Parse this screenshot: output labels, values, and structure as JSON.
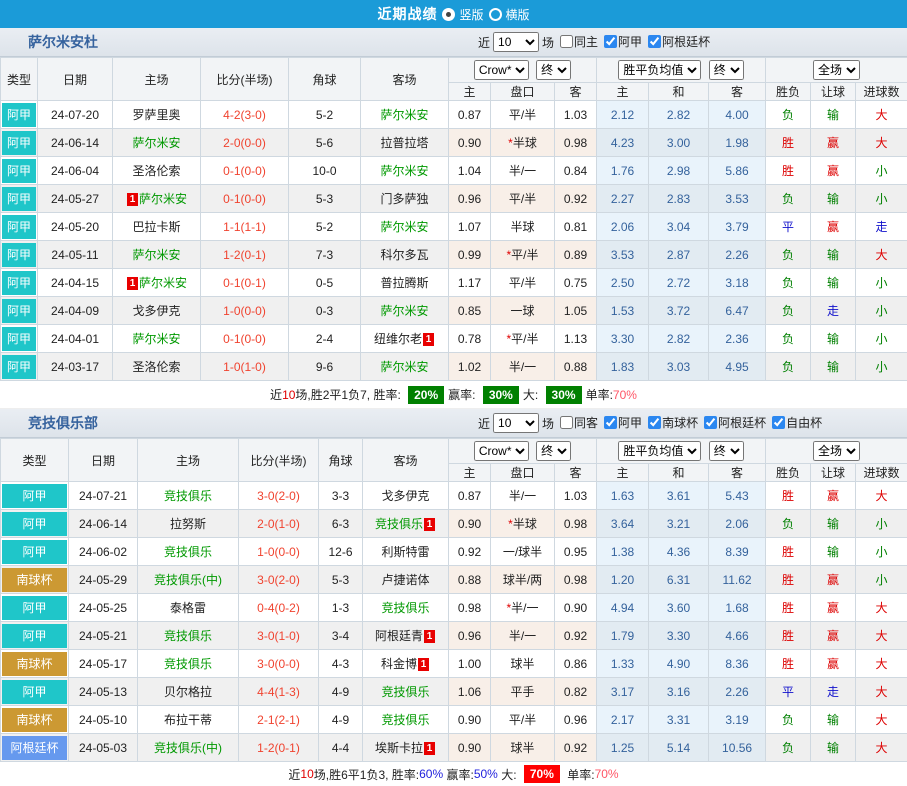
{
  "titlebar": {
    "title": "近期战绩",
    "radio_vertical": "竖版",
    "radio_horizontal": "横版",
    "selected": "竖版"
  },
  "header": {
    "columns": [
      "类型",
      "日期",
      "主场",
      "比分(半场)",
      "角球",
      "客场"
    ],
    "sub": [
      "主",
      "盘口",
      "客",
      "主",
      "和",
      "客",
      "胜负",
      "让球",
      "进球数"
    ],
    "selects": {
      "bookmaker": "Crow*",
      "time_final": "终",
      "avg": "胜平负均值",
      "scope": "全场"
    }
  },
  "card_label": "1",
  "colors": {
    "titlebar_bg": "#1b9bd8",
    "focus_team": "#009900",
    "score": "#f0432f",
    "league": {
      "阿甲": "#1fc6c9",
      "南球杯": "#cc9933",
      "阿根廷杯": "#6699ee"
    },
    "outcome": {
      "胜": "#dd0000",
      "赢": "#dd0000",
      "大": "#dd0000",
      "负": "#008000",
      "输": "#008000",
      "小": "#008000",
      "平": "#1111cc",
      "走": "#1111cc"
    }
  },
  "sections": [
    {
      "team": "萨尔米安杜",
      "filters": {
        "prefix": "近",
        "count": "10",
        "suffix": "场",
        "checkboxes": [
          {
            "label": "同主",
            "checked": false
          },
          {
            "label": "阿甲",
            "checked": true
          },
          {
            "label": "阿根廷杯",
            "checked": true
          }
        ]
      },
      "rows": [
        {
          "league": "阿甲",
          "date": "24-07-20",
          "home": "罗萨里奥",
          "home_focus": false,
          "home_card": false,
          "score": "4-2",
          "half": "(3-0)",
          "corner": "5-2",
          "away": "萨尔米安",
          "away_focus": true,
          "away_card": false,
          "h_odds": "0.87",
          "handicap": "平/半",
          "a_odds": "1.03",
          "avg": [
            "2.12",
            "2.82",
            "4.00"
          ],
          "result": "负",
          "let_ball": "输",
          "goals": "大"
        },
        {
          "league": "阿甲",
          "date": "24-06-14",
          "home": "萨尔米安",
          "home_focus": true,
          "home_card": false,
          "score": "2-0",
          "half": "(0-0)",
          "corner": "5-6",
          "away": "拉普拉塔",
          "away_focus": false,
          "away_card": false,
          "h_odds": "0.90",
          "handicap": "*半球",
          "a_odds": "0.98",
          "avg": [
            "4.23",
            "3.00",
            "1.98"
          ],
          "result": "胜",
          "let_ball": "赢",
          "goals": "大"
        },
        {
          "league": "阿甲",
          "date": "24-06-04",
          "home": "圣洛伦索",
          "home_focus": false,
          "home_card": false,
          "score": "0-1",
          "half": "(0-0)",
          "corner": "10-0",
          "away": "萨尔米安",
          "away_focus": true,
          "away_card": false,
          "h_odds": "1.04",
          "handicap": "半/一",
          "a_odds": "0.84",
          "avg": [
            "1.76",
            "2.98",
            "5.86"
          ],
          "result": "胜",
          "let_ball": "赢",
          "goals": "小"
        },
        {
          "league": "阿甲",
          "date": "24-05-27",
          "home": "萨尔米安",
          "home_focus": true,
          "home_card": true,
          "score": "0-1",
          "half": "(0-0)",
          "corner": "5-3",
          "away": "门多萨独",
          "away_focus": false,
          "away_card": false,
          "h_odds": "0.96",
          "handicap": "平/半",
          "a_odds": "0.92",
          "avg": [
            "2.27",
            "2.83",
            "3.53"
          ],
          "result": "负",
          "let_ball": "输",
          "goals": "小"
        },
        {
          "league": "阿甲",
          "date": "24-05-20",
          "home": "巴拉卡斯",
          "home_focus": false,
          "home_card": false,
          "score": "1-1",
          "half": "(1-1)",
          "corner": "5-2",
          "away": "萨尔米安",
          "away_focus": true,
          "away_card": false,
          "h_odds": "1.07",
          "handicap": "半球",
          "a_odds": "0.81",
          "avg": [
            "2.06",
            "3.04",
            "3.79"
          ],
          "result": "平",
          "let_ball": "赢",
          "goals": "走"
        },
        {
          "league": "阿甲",
          "date": "24-05-11",
          "home": "萨尔米安",
          "home_focus": true,
          "home_card": false,
          "score": "1-2",
          "half": "(0-1)",
          "corner": "7-3",
          "away": "科尔多瓦",
          "away_focus": false,
          "away_card": false,
          "h_odds": "0.99",
          "handicap": "*平/半",
          "a_odds": "0.89",
          "avg": [
            "3.53",
            "2.87",
            "2.26"
          ],
          "result": "负",
          "let_ball": "输",
          "goals": "大"
        },
        {
          "league": "阿甲",
          "date": "24-04-15",
          "home": "萨尔米安",
          "home_focus": true,
          "home_card": true,
          "score": "0-1",
          "half": "(0-1)",
          "corner": "0-5",
          "away": "普拉腾斯",
          "away_focus": false,
          "away_card": false,
          "h_odds": "1.17",
          "handicap": "平/半",
          "a_odds": "0.75",
          "avg": [
            "2.50",
            "2.72",
            "3.18"
          ],
          "result": "负",
          "let_ball": "输",
          "goals": "小"
        },
        {
          "league": "阿甲",
          "date": "24-04-09",
          "home": "戈多伊克",
          "home_focus": false,
          "home_card": false,
          "score": "1-0",
          "half": "(0-0)",
          "corner": "0-3",
          "away": "萨尔米安",
          "away_focus": true,
          "away_card": false,
          "h_odds": "0.85",
          "handicap": "一球",
          "a_odds": "1.05",
          "avg": [
            "1.53",
            "3.72",
            "6.47"
          ],
          "result": "负",
          "let_ball": "走",
          "goals": "小"
        },
        {
          "league": "阿甲",
          "date": "24-04-01",
          "home": "萨尔米安",
          "home_focus": true,
          "home_card": false,
          "score": "0-1",
          "half": "(0-0)",
          "corner": "2-4",
          "away": "纽维尔老",
          "away_focus": false,
          "away_card": true,
          "h_odds": "0.78",
          "handicap": "*平/半",
          "a_odds": "1.13",
          "avg": [
            "3.30",
            "2.82",
            "2.36"
          ],
          "result": "负",
          "let_ball": "输",
          "goals": "小"
        },
        {
          "league": "阿甲",
          "date": "24-03-17",
          "home": "圣洛伦索",
          "home_focus": false,
          "home_card": false,
          "score": "1-0",
          "half": "(1-0)",
          "corner": "9-6",
          "away": "萨尔米安",
          "away_focus": true,
          "away_card": false,
          "h_odds": "1.02",
          "handicap": "半/一",
          "a_odds": "0.88",
          "avg": [
            "1.83",
            "3.03",
            "4.95"
          ],
          "result": "负",
          "let_ball": "输",
          "goals": "小"
        }
      ],
      "summary": [
        {
          "t": "近",
          "s": "plain"
        },
        {
          "t": "10",
          "s": "red"
        },
        {
          "t": "场,胜2平1负7, 胜率: ",
          "s": "plain"
        },
        {
          "t": "20%",
          "s": "bgreen"
        },
        {
          "t": "赢率: ",
          "s": "plain"
        },
        {
          "t": "30%",
          "s": "bgreen"
        },
        {
          "t": "大: ",
          "s": "plain"
        },
        {
          "t": "30%",
          "s": "bgreen"
        },
        {
          "t": "单率:",
          "s": "plain"
        },
        {
          "t": "70%",
          "s": "pink"
        }
      ]
    },
    {
      "team": "竞技俱乐部",
      "filters": {
        "prefix": "近",
        "count": "10",
        "suffix": "场",
        "checkboxes": [
          {
            "label": "同客",
            "checked": false
          },
          {
            "label": "阿甲",
            "checked": true
          },
          {
            "label": "南球杯",
            "checked": true
          },
          {
            "label": "阿根廷杯",
            "checked": true
          },
          {
            "label": "自由杯",
            "checked": true
          }
        ]
      },
      "rows": [
        {
          "league": "阿甲",
          "date": "24-07-21",
          "home": "竞技俱乐",
          "home_focus": true,
          "home_card": false,
          "score": "3-0",
          "half": "(2-0)",
          "corner": "3-3",
          "away": "戈多伊克",
          "away_focus": false,
          "away_card": false,
          "h_odds": "0.87",
          "handicap": "半/一",
          "a_odds": "1.03",
          "avg": [
            "1.63",
            "3.61",
            "5.43"
          ],
          "result": "胜",
          "let_ball": "赢",
          "goals": "大"
        },
        {
          "league": "阿甲",
          "date": "24-06-14",
          "home": "拉努斯",
          "home_focus": false,
          "home_card": false,
          "score": "2-0",
          "half": "(1-0)",
          "corner": "6-3",
          "away": "竞技俱乐",
          "away_focus": true,
          "away_card": true,
          "h_odds": "0.90",
          "handicap": "*半球",
          "a_odds": "0.98",
          "avg": [
            "3.64",
            "3.21",
            "2.06"
          ],
          "result": "负",
          "let_ball": "输",
          "goals": "小"
        },
        {
          "league": "阿甲",
          "date": "24-06-02",
          "home": "竞技俱乐",
          "home_focus": true,
          "home_card": false,
          "score": "1-0",
          "half": "(0-0)",
          "corner": "12-6",
          "away": "利斯特雷",
          "away_focus": false,
          "away_card": false,
          "h_odds": "0.92",
          "handicap": "一/球半",
          "a_odds": "0.95",
          "avg": [
            "1.38",
            "4.36",
            "8.39"
          ],
          "result": "胜",
          "let_ball": "输",
          "goals": "小"
        },
        {
          "league": "南球杯",
          "date": "24-05-29",
          "home": "竞技俱乐(中)",
          "home_focus": true,
          "home_card": false,
          "score": "3-0",
          "half": "(2-0)",
          "corner": "5-3",
          "away": "卢捷诺体",
          "away_focus": false,
          "away_card": false,
          "h_odds": "0.88",
          "handicap": "球半/两",
          "a_odds": "0.98",
          "avg": [
            "1.20",
            "6.31",
            "11.62"
          ],
          "result": "胜",
          "let_ball": "赢",
          "goals": "小"
        },
        {
          "league": "阿甲",
          "date": "24-05-25",
          "home": "泰格雷",
          "home_focus": false,
          "home_card": false,
          "score": "0-4",
          "half": "(0-2)",
          "corner": "1-3",
          "away": "竞技俱乐",
          "away_focus": true,
          "away_card": false,
          "h_odds": "0.98",
          "handicap": "*半/一",
          "a_odds": "0.90",
          "avg": [
            "4.94",
            "3.60",
            "1.68"
          ],
          "result": "胜",
          "let_ball": "赢",
          "goals": "大"
        },
        {
          "league": "阿甲",
          "date": "24-05-21",
          "home": "竞技俱乐",
          "home_focus": true,
          "home_card": false,
          "score": "3-0",
          "half": "(1-0)",
          "corner": "3-4",
          "away": "阿根廷青",
          "away_focus": false,
          "away_card": true,
          "h_odds": "0.96",
          "handicap": "半/一",
          "a_odds": "0.92",
          "avg": [
            "1.79",
            "3.30",
            "4.66"
          ],
          "result": "胜",
          "let_ball": "赢",
          "goals": "大"
        },
        {
          "league": "南球杯",
          "date": "24-05-17",
          "home": "竞技俱乐",
          "home_focus": true,
          "home_card": false,
          "score": "3-0",
          "half": "(0-0)",
          "corner": "4-3",
          "away": "科金博",
          "away_focus": false,
          "away_card": true,
          "h_odds": "1.00",
          "handicap": "球半",
          "a_odds": "0.86",
          "avg": [
            "1.33",
            "4.90",
            "8.36"
          ],
          "result": "胜",
          "let_ball": "赢",
          "goals": "大"
        },
        {
          "league": "阿甲",
          "date": "24-05-13",
          "home": "贝尔格拉",
          "home_focus": false,
          "home_card": false,
          "score": "4-4",
          "half": "(1-3)",
          "corner": "4-9",
          "away": "竞技俱乐",
          "away_focus": true,
          "away_card": false,
          "h_odds": "1.06",
          "handicap": "平手",
          "a_odds": "0.82",
          "avg": [
            "3.17",
            "3.16",
            "2.26"
          ],
          "result": "平",
          "let_ball": "走",
          "goals": "大"
        },
        {
          "league": "南球杯",
          "date": "24-05-10",
          "home": "布拉干蒂",
          "home_focus": false,
          "home_card": false,
          "score": "2-1",
          "half": "(2-1)",
          "corner": "4-9",
          "away": "竞技俱乐",
          "away_focus": true,
          "away_card": false,
          "h_odds": "0.90",
          "handicap": "平/半",
          "a_odds": "0.96",
          "avg": [
            "2.17",
            "3.31",
            "3.19"
          ],
          "result": "负",
          "let_ball": "输",
          "goals": "大"
        },
        {
          "league": "阿根廷杯",
          "date": "24-05-03",
          "home": "竞技俱乐(中)",
          "home_focus": true,
          "home_card": false,
          "score": "1-2",
          "half": "(0-1)",
          "corner": "4-4",
          "away": "埃斯卡拉",
          "away_focus": false,
          "away_card": true,
          "h_odds": "0.90",
          "handicap": "球半",
          "a_odds": "0.92",
          "avg": [
            "1.25",
            "5.14",
            "10.56"
          ],
          "result": "负",
          "let_ball": "输",
          "goals": "大"
        }
      ],
      "summary": [
        {
          "t": "近",
          "s": "plain"
        },
        {
          "t": "10",
          "s": "red"
        },
        {
          "t": "场,胜6平1负3, 胜率:",
          "s": "plain"
        },
        {
          "t": "60%",
          "s": "blue"
        },
        {
          "t": " 赢率:",
          "s": "plain"
        },
        {
          "t": "50%",
          "s": "blue"
        },
        {
          "t": " 大: ",
          "s": "plain"
        },
        {
          "t": "70%",
          "s": "bred"
        },
        {
          "t": " 单率:",
          "s": "plain"
        },
        {
          "t": "70%",
          "s": "pink"
        }
      ]
    }
  ]
}
